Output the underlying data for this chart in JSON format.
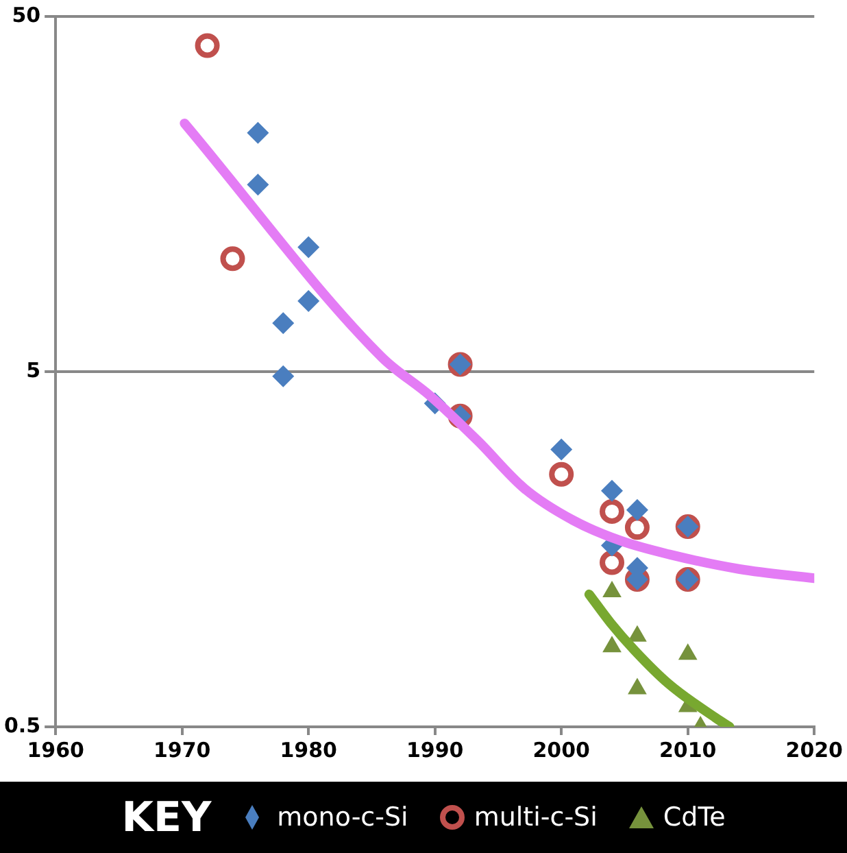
{
  "chart_data": {
    "type": "scatter",
    "log": "y",
    "grid": "y",
    "legend": "bottom",
    "legend_title": "KEY",
    "xlim": [
      1960,
      2020
    ],
    "xticks": [
      1960,
      1970,
      1980,
      1990,
      2000,
      2010,
      2020
    ],
    "ylim": [
      0.5,
      50
    ],
    "yticks": [
      0.5,
      5,
      50
    ],
    "series": [
      {
        "name": "mono-c-Si",
        "marker": "diamond",
        "color": "#4a7ebf",
        "x": [
          1976,
          1976,
          1978,
          1978,
          1980,
          1980,
          1990,
          1992,
          1992,
          2000,
          2004,
          2004,
          2006,
          2006,
          2006,
          2010,
          2010
        ],
        "values": [
          23.5,
          16.8,
          6.85,
          4.85,
          11.2,
          7.9,
          4.07,
          5.24,
          3.75,
          3.02,
          2.31,
          1.62,
          2.04,
          1.4,
          1.3,
          1.83,
          1.3
        ]
      },
      {
        "name": "multi-c-Si",
        "marker": "circle",
        "color": "#c0504d",
        "x": [
          1972,
          1974,
          1992,
          1992,
          2000,
          2004,
          2004,
          2006,
          2006,
          2010,
          2010
        ],
        "values": [
          41.4,
          10.4,
          5.24,
          3.75,
          2.57,
          2.02,
          1.45,
          1.82,
          1.3,
          1.83,
          1.3
        ]
      },
      {
        "name": "CdTe",
        "marker": "triangle",
        "color": "#76923c",
        "x": [
          2004,
          2004,
          2006,
          2006,
          2010,
          2010,
          2011
        ],
        "values": [
          1.2,
          0.84,
          0.9,
          0.64,
          0.8,
          0.57,
          0.5
        ]
      },
      {
        "type": "line",
        "marker": "none",
        "color": "#e47cf5",
        "x": [
          1970.2,
          1985.8,
          1989.6,
          1993.4,
          1997.1,
          2000.9,
          2004.7,
          2008.5,
          2014.1,
          2020
        ],
        "values": [
          25,
          5.49,
          4.28,
          3.19,
          2.34,
          1.91,
          1.67,
          1.53,
          1.39,
          1.31
        ]
      },
      {
        "type": "line",
        "marker": "none",
        "color": "#78a830",
        "x": [
          2002.2,
          2003.9,
          2005.8,
          2008.5,
          2012.2,
          2013.3
        ],
        "values": [
          1.18,
          0.98,
          0.82,
          0.66,
          0.53,
          0.5
        ]
      }
    ]
  }
}
